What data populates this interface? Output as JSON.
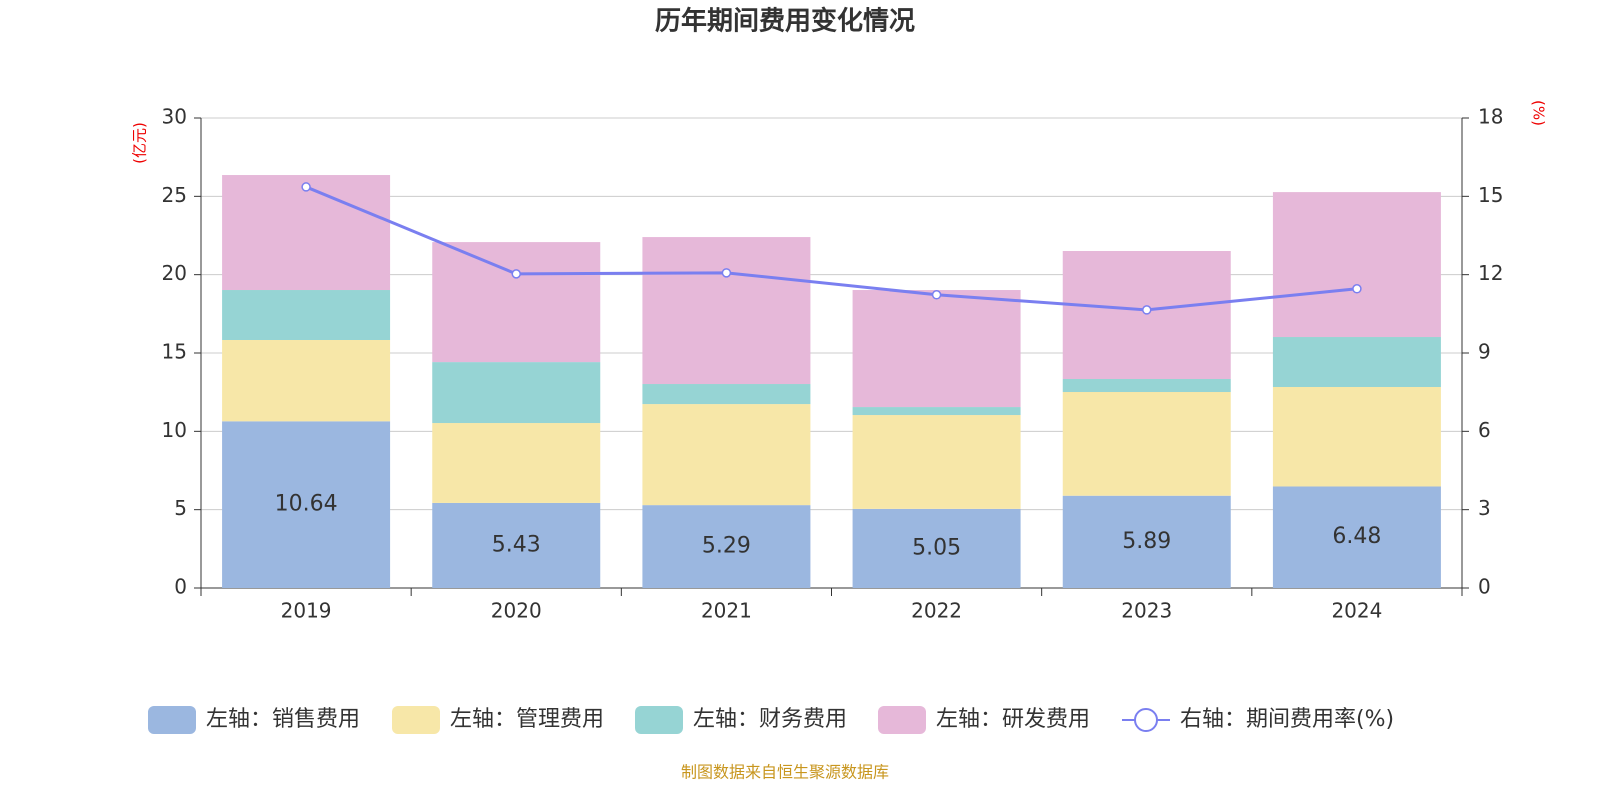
{
  "chart_data": {
    "type": "bar",
    "title": "历年期间费用变化情况",
    "y_label": "(亿元)",
    "y2_label": "(%)",
    "categories": [
      "2019",
      "2020",
      "2021",
      "2022",
      "2023",
      "2024"
    ],
    "series": [
      {
        "name": "左轴：销售费用",
        "color": "#9bb7e0",
        "show_labels": true,
        "values": [
          10.64,
          5.43,
          5.29,
          5.05,
          5.89,
          6.48
        ]
      },
      {
        "name": "左轴：管理费用",
        "color": "#f7e7a8",
        "values": [
          5.19,
          5.1,
          6.45,
          5.99,
          6.62,
          6.35
        ]
      },
      {
        "name": "左轴：财务费用",
        "color": "#96d4d4",
        "values": [
          3.19,
          3.89,
          1.28,
          0.51,
          0.83,
          3.19
        ]
      },
      {
        "name": "左轴：研发费用",
        "color": "#e6b8d9",
        "values": [
          7.34,
          7.66,
          9.38,
          7.47,
          8.17,
          9.25
        ]
      },
      {
        "name": "右轴：期间费用率(%)",
        "type": "line",
        "axis": "y2",
        "color": "#7a7ff0",
        "values": [
          15.36,
          12.03,
          12.07,
          11.23,
          10.65,
          11.46
        ]
      }
    ],
    "ylim": [
      0,
      30
    ],
    "yticks": [
      0,
      5,
      10,
      15,
      20,
      25,
      30
    ],
    "y2lim": [
      0,
      18
    ],
    "y2ticks": [
      0,
      3,
      6,
      9,
      12,
      15,
      18
    ],
    "grid": true,
    "source": "制图数据来自恒生聚源数据库"
  }
}
